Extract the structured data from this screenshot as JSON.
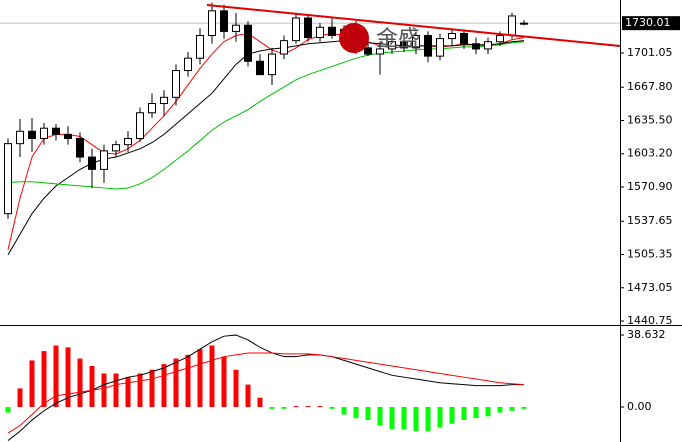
{
  "chart_data": [
    {
      "type": "candlestick",
      "watermark": "金盛",
      "ylim": [
        1436.9,
        1752.5
      ],
      "yticks": [
        1440.75,
        1473.05,
        1505.35,
        1537.65,
        {
          "value": 1570.9,
          "label": "1570.90"
        },
        {
          "value": 1603.2,
          "label": "1603.20"
        },
        {
          "value": 1635.5,
          "label": "1635.50"
        },
        {
          "value": 1667.8,
          "label": "1667.80"
        },
        1701.05
      ],
      "last_price": 1730.01,
      "up_color": "#ffffff",
      "down_color": "#000000",
      "open": [
        1545,
        1613,
        1625,
        1618,
        1628,
        1622,
        1618,
        1600,
        1588,
        1606,
        1612,
        1618,
        1643,
        1652,
        1658,
        1684,
        1696,
        1718,
        1742,
        1722,
        1728,
        1693,
        1680,
        1700,
        1713,
        1735,
        1716,
        1726,
        1718,
        1724,
        1706,
        1700,
        1705,
        1712,
        1706,
        1718,
        1698,
        1715,
        1720,
        1710,
        1705,
        1712,
        1718,
        1730
      ],
      "high": [
        1618,
        1637,
        1638,
        1633,
        1632,
        1630,
        1624,
        1608,
        1612,
        1616,
        1625,
        1648,
        1662,
        1665,
        1690,
        1702,
        1725,
        1750,
        1748,
        1740,
        1732,
        1700,
        1706,
        1718,
        1740,
        1738,
        1730,
        1735,
        1728,
        1732,
        1720,
        1712,
        1718,
        1720,
        1722,
        1722,
        1720,
        1725,
        1724,
        1716,
        1716,
        1722,
        1740,
        1733
      ],
      "low": [
        1540,
        1600,
        1605,
        1612,
        1616,
        1612,
        1595,
        1570,
        1575,
        1600,
        1605,
        1615,
        1638,
        1640,
        1650,
        1678,
        1690,
        1710,
        1715,
        1712,
        1688,
        1683,
        1670,
        1695,
        1710,
        1712,
        1712,
        1715,
        1705,
        1700,
        1698,
        1680,
        1700,
        1702,
        1700,
        1692,
        1694,
        1708,
        1705,
        1700,
        1700,
        1708,
        1715,
        1728
      ],
      "close": [
        1613,
        1625,
        1618,
        1628,
        1622,
        1618,
        1600,
        1588,
        1606,
        1612,
        1618,
        1643,
        1652,
        1658,
        1684,
        1696,
        1718,
        1742,
        1722,
        1728,
        1693,
        1680,
        1700,
        1713,
        1735,
        1716,
        1726,
        1718,
        1724,
        1706,
        1700,
        1705,
        1712,
        1706,
        1718,
        1698,
        1715,
        1720,
        1710,
        1705,
        1712,
        1718,
        1737,
        1730
      ],
      "lines": [
        {
          "color": "#ff0000",
          "values": [
            1510,
            1560,
            1600,
            1618,
            1622,
            1622,
            1620,
            1612,
            1604,
            1603,
            1608,
            1616,
            1628,
            1640,
            1654,
            1670,
            1686,
            1700,
            1712,
            1718,
            1720,
            1712,
            1704,
            1700,
            1706,
            1714,
            1718,
            1720,
            1718,
            1716,
            1712,
            1708,
            1706,
            1707,
            1708,
            1708,
            1707,
            1708,
            1710,
            1709,
            1708,
            1710,
            1714,
            1716
          ]
        },
        {
          "color": "#000000",
          "values": [
            1505,
            1525,
            1545,
            1560,
            1572,
            1580,
            1588,
            1594,
            1598,
            1600,
            1604,
            1608,
            1614,
            1622,
            1632,
            1642,
            1652,
            1662,
            1676,
            1690,
            1700,
            1703,
            1705,
            1706,
            1708,
            1710,
            1711,
            1712,
            1713,
            1712,
            1711,
            1710,
            1709,
            1708,
            1708,
            1708,
            1708,
            1708,
            1709,
            1709,
            1709,
            1710,
            1712,
            1713
          ]
        },
        {
          "color": "#00c000",
          "values": [
            1575,
            1576,
            1576,
            1575,
            1574,
            1573,
            1572,
            1571,
            1570,
            1569,
            1570,
            1574,
            1580,
            1588,
            1597,
            1606,
            1616,
            1626,
            1634,
            1640,
            1646,
            1654,
            1661,
            1668,
            1675,
            1680,
            1684,
            1688,
            1692,
            1696,
            1699,
            1701,
            1702,
            1703,
            1704,
            1705,
            1705,
            1706,
            1707,
            1707,
            1708,
            1709,
            1711,
            1712
          ]
        }
      ]
    },
    {
      "type": "macd",
      "ylim": [
        -18.78,
        42.93
      ],
      "yticks": [
        {
          "value": 0,
          "label": "0.00"
        },
        38.632
      ],
      "up_color": "#ff0000",
      "down_color": "#00ff00",
      "histogram": [
        -3,
        10,
        25,
        30,
        33,
        32,
        26,
        22,
        18,
        18,
        16,
        18,
        20,
        23,
        26,
        28,
        31,
        33,
        27,
        20,
        12,
        5,
        -1,
        -1,
        0.5,
        0.5,
        0.5,
        -1,
        -4,
        -6,
        -7,
        -10,
        -12,
        -12,
        -13,
        -13,
        -11,
        -9,
        -7,
        -6,
        -5,
        -3,
        -2,
        -1
      ],
      "lines": [
        {
          "color": "#000000",
          "values": [
            -18,
            -13,
            -7,
            -2,
            2,
            5,
            7,
            9,
            12,
            14,
            16,
            17,
            19,
            21,
            24,
            27,
            31,
            35,
            38,
            38.6,
            36,
            32,
            29,
            27,
            27,
            28,
            28,
            27,
            25,
            23,
            21,
            19,
            17,
            16,
            15,
            14,
            13,
            12.5,
            12,
            11.5,
            11.5,
            11.5,
            12,
            12
          ]
        },
        {
          "color": "#ff0000",
          "values": [
            -14,
            -10,
            -4,
            2,
            6,
            7,
            8,
            9,
            10,
            12,
            13,
            14,
            15,
            17,
            19,
            21,
            23,
            25,
            27,
            28,
            29,
            29,
            29,
            28.5,
            28.5,
            28.5,
            28,
            27,
            26,
            25,
            24,
            23,
            22,
            21,
            20,
            19,
            18,
            17,
            16,
            15,
            14,
            13,
            12.5,
            12
          ]
        }
      ]
    }
  ]
}
